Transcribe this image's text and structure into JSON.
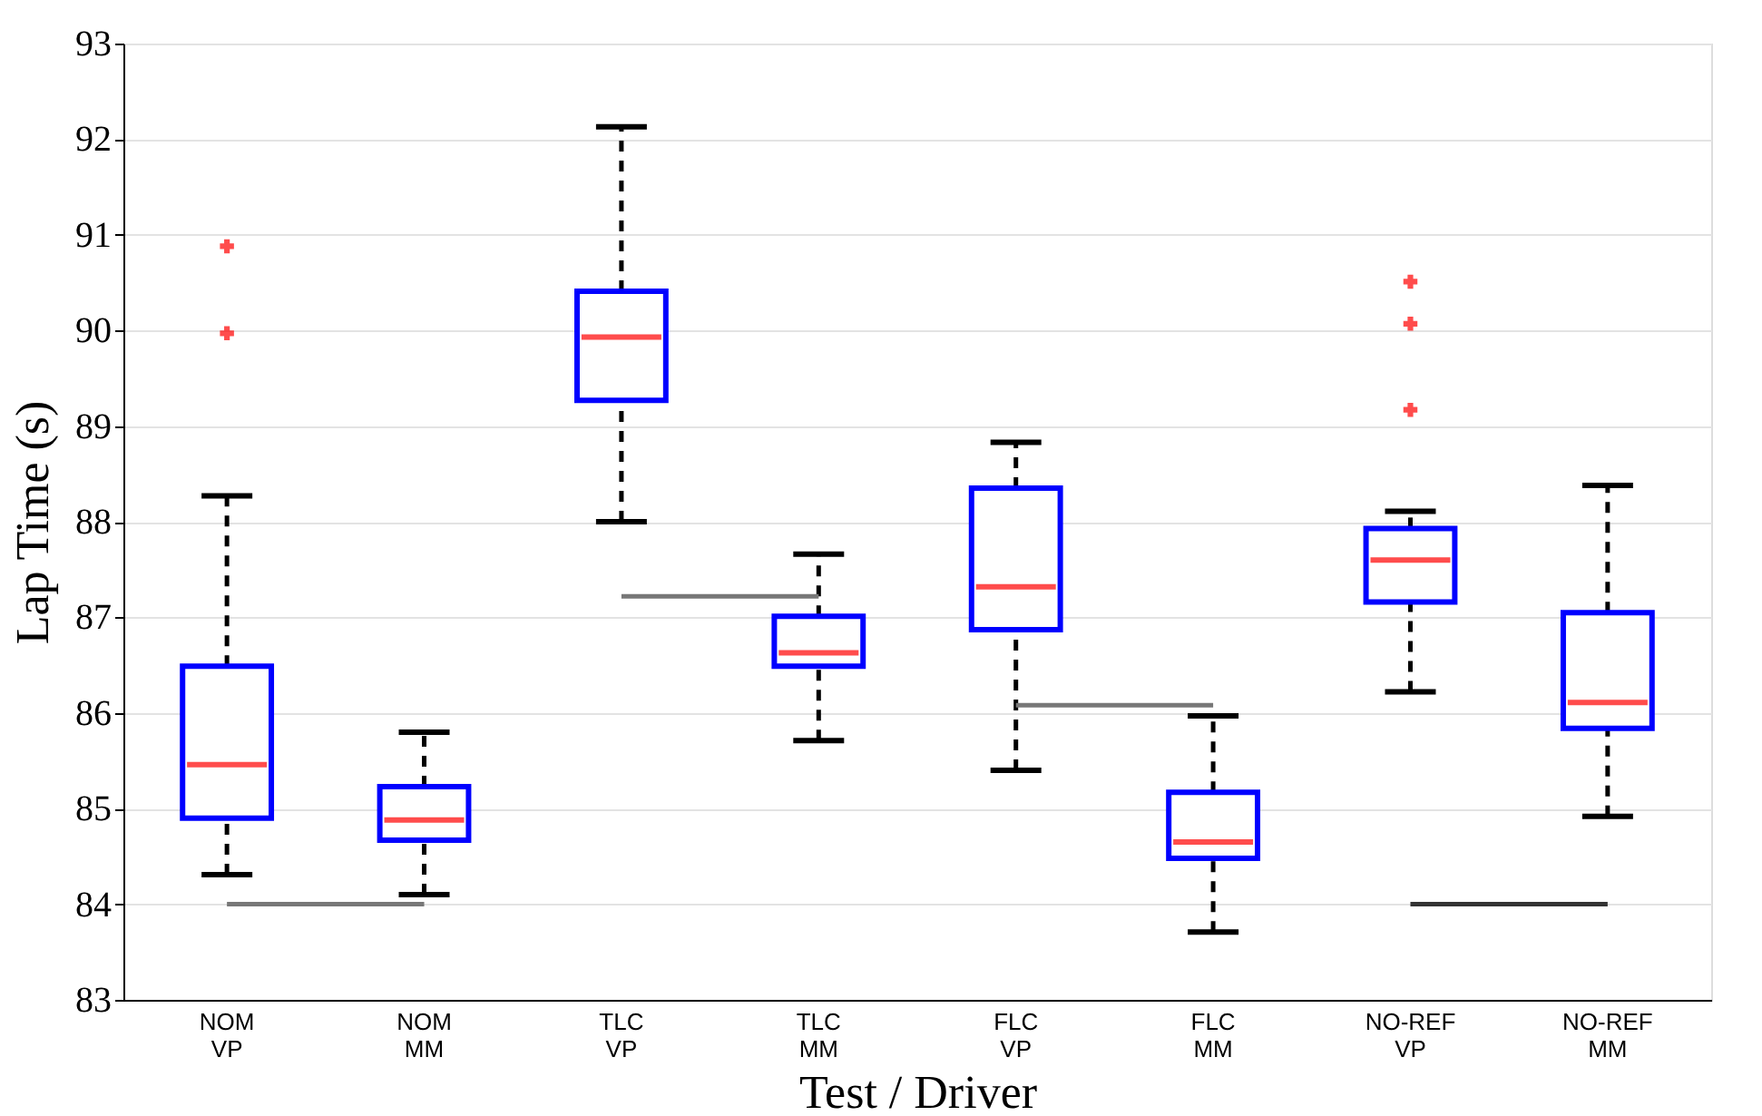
{
  "chart_data": {
    "type": "box",
    "xlabel": "Test / Driver",
    "ylabel": "Lap Time (s)",
    "categories": [
      "NOM\nVP",
      "NOM\nMM",
      "TLC\nVP",
      "TLC\nMM",
      "FLC\nVP",
      "FLC\nMM",
      "NO-REF\nVP",
      "NO-REF\nMM"
    ],
    "ylim": [
      83,
      93
    ],
    "yticks": [
      83,
      84,
      85,
      86,
      87,
      88,
      89,
      90,
      91,
      92,
      93
    ],
    "grid": "y",
    "series": [
      {
        "color": "#0000ff",
        "marker": "cross",
        "boxes": [
          {
            "low": 84.31,
            "q1": 84.9,
            "median": 85.46,
            "q3": 86.49,
            "high": 88.27,
            "outliers": [
              90.88,
              89.97
            ]
          },
          {
            "low": 84.1,
            "q1": 84.67,
            "median": 84.88,
            "q3": 85.23,
            "high": 85.8
          },
          {
            "low": 88.0,
            "q1": 89.27,
            "median": 89.93,
            "q3": 90.41,
            "high": 92.13
          },
          {
            "low": 85.71,
            "q1": 86.49,
            "median": 86.63,
            "q3": 87.01,
            "high": 87.66
          },
          {
            "low": 85.4,
            "q1": 86.87,
            "median": 87.32,
            "q3": 88.35,
            "high": 88.83
          },
          {
            "low": 83.71,
            "q1": 84.48,
            "median": 84.65,
            "q3": 85.17,
            "high": 85.97
          },
          {
            "low": 86.22,
            "q1": 87.16,
            "median": 87.6,
            "q3": 87.93,
            "high": 88.11,
            "outliers": [
              90.51,
              90.07,
              89.17
            ]
          },
          {
            "low": 84.92,
            "q1": 85.84,
            "median": 86.11,
            "q3": 87.05,
            "high": 88.38
          }
        ]
      },
      {
        "type": "line",
        "color": "#777777",
        "values": [
          84.0,
          84.0,
          null,
          null,
          null,
          null,
          null,
          null
        ]
      },
      {
        "type": "line",
        "color": "#777777",
        "values": [
          null,
          null,
          87.22,
          87.22,
          null,
          null,
          null,
          null
        ]
      },
      {
        "type": "line",
        "color": "#777777",
        "values": [
          null,
          null,
          null,
          null,
          86.08,
          86.08,
          null,
          null
        ]
      },
      {
        "type": "line",
        "color": "#333333",
        "values": [
          null,
          null,
          null,
          null,
          null,
          null,
          84.0,
          84.0
        ]
      }
    ]
  }
}
